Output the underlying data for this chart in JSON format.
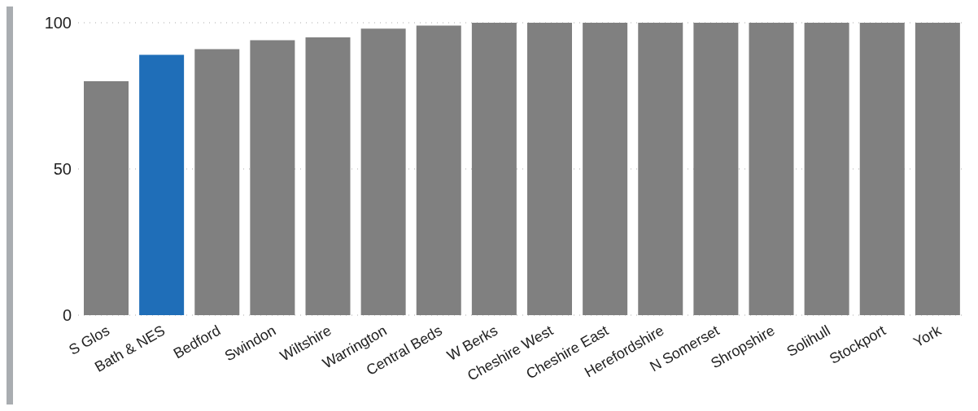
{
  "chart_data": {
    "type": "bar",
    "categories": [
      "S Glos",
      "Bath & NES",
      "Bedford",
      "Swindon",
      "Wiltshire",
      "Warrington",
      "Central Beds",
      "W Berks",
      "Cheshire West",
      "Cheshire East",
      "Herefordshire",
      "N Somerset",
      "Shropshire",
      "Solihull",
      "Stockport",
      "York"
    ],
    "values": [
      80,
      89,
      91,
      94,
      95,
      98,
      99,
      100,
      100,
      100,
      100,
      100,
      100,
      100,
      100,
      100
    ],
    "colors": [
      "#808080",
      "#1f6eb8",
      "#808080",
      "#808080",
      "#808080",
      "#808080",
      "#808080",
      "#808080",
      "#808080",
      "#808080",
      "#808080",
      "#808080",
      "#808080",
      "#808080",
      "#808080",
      "#808080"
    ],
    "ylim": [
      0,
      100
    ],
    "yticks": [
      0,
      50,
      100
    ],
    "grid": "y"
  }
}
